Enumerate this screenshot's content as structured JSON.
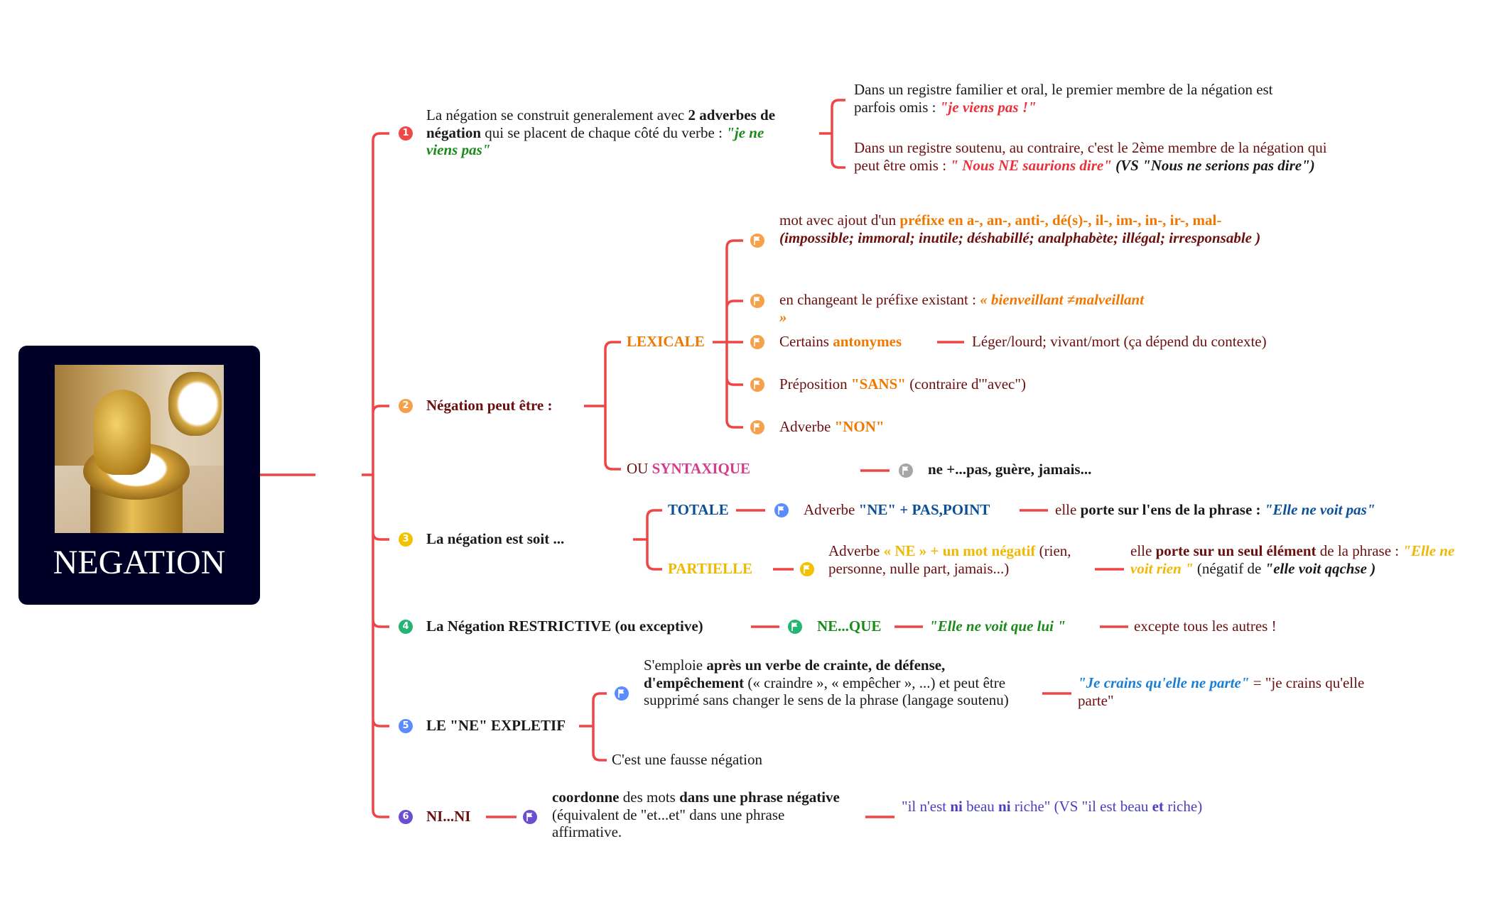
{
  "colors": {
    "line": "#f04545",
    "maroon": "#6b0f0f",
    "orange": "#f07800",
    "red": "#e8303a",
    "green": "#1a8a1a",
    "blue": "#0a4f9a",
    "pink": "#d63c8c",
    "yellow": "#f0b800",
    "cyan": "#1a7fd4",
    "purple": "#4a3fc0",
    "root_bg": "#000026"
  },
  "root": {
    "title": "NEGATION",
    "image": "golden-toilet-photo"
  },
  "icons": {
    "numbered": [
      "1",
      "2",
      "3",
      "4",
      "5",
      "6"
    ],
    "marker": "flag-icon"
  },
  "n1": {
    "text": [
      {
        "t": "La négation se construit generalement avec ",
        "c": "#1a1a1a"
      },
      {
        "t": "2 adverbes de négation",
        "s": "b",
        "c": "#1a1a1a"
      },
      {
        "t": " qui se placent de chaque côté du verbe : ",
        "c": "#1a1a1a"
      },
      {
        "t": "\"je ne viens pas\"",
        "s": "bi",
        "c": "#1a8a1a"
      }
    ],
    "a": [
      {
        "t": "Dans un registre familier et oral, le premier membre de la négation est parfois omis : ",
        "c": "#1a1a1a"
      },
      {
        "t": "\"je viens pas !\"",
        "s": "bi",
        "c": "#e8303a"
      }
    ],
    "b": [
      {
        "t": "Dans un registre soutenu, au contraire, c'est le 2ème membre de la négation qui peut être omis : ",
        "c": "#6b0f0f"
      },
      {
        "t": "\" Nous NE saurions dire\"",
        "s": "bi",
        "c": "#e8303a"
      },
      {
        "t": " (VS \"Nous ne serions pas dire\")",
        "s": "bi",
        "c": "#1a1a1a"
      }
    ]
  },
  "n2": {
    "label": "Négation peut être  :",
    "lexicale": "LEXICALE",
    "lex_items": [
      [
        {
          "t": "mot avec ajout d'un "
        },
        {
          "t": "préfixe en a-, an-, anti-, dé(s)-, il-, im-, in-, ir-, mal-",
          "s": "b",
          "c": "#f07800"
        },
        {
          "t": " (impossible; immoral; inutile; déshabillé; analphabète; illégal; irresponsable )",
          "s": "bi"
        }
      ],
      [
        {
          "t": "en changeant le préfixe existant : "
        },
        {
          "t": "« bienveillant ≠malveillant »",
          "s": "bi",
          "c": "#f07800"
        }
      ],
      [
        {
          "t": "Certains "
        },
        {
          "t": "antonymes",
          "s": "b",
          "c": "#f07800"
        }
      ],
      [
        {
          "t": "Préposition "
        },
        {
          "t": "\"SANS\"",
          "s": "b",
          "c": "#f07800"
        },
        {
          "t": " (contraire d'\"avec\")"
        }
      ],
      [
        {
          "t": "Adverbe "
        },
        {
          "t": "\"NON\"",
          "s": "b",
          "c": "#f07800"
        }
      ]
    ],
    "antonyms_examples": "Léger/lourd; vivant/mort (ça dépend du contexte)",
    "syntaxique": [
      {
        "t": "OU "
      },
      {
        "t": "SYNTAXIQUE",
        "s": "b",
        "c": "#d63c8c"
      }
    ],
    "syntaxique_detail": "ne +...pas, guère, jamais..."
  },
  "n3": {
    "label": "La négation est soit ...",
    "totale": "TOTALE",
    "totale_def": [
      {
        "t": "Adverbe "
      },
      {
        "t": "\"NE\" + PAS,POINT",
        "s": "b",
        "c": "#0a4f9a"
      }
    ],
    "totale_scope": [
      {
        "t": "elle "
      },
      {
        "t": "porte sur l'ens de la phrase : ",
        "s": "b",
        "c": "#1a1a1a"
      },
      {
        "t": "\"Elle ne voit pas\"",
        "s": "bi",
        "c": "#0a4f9a"
      }
    ],
    "partielle": "PARTIELLE",
    "partielle_def": [
      {
        "t": "Adverbe "
      },
      {
        "t": "« NE » +  un mot négatif",
        "s": "b",
        "c": "#f0b800"
      },
      {
        "t": " (rien, personne, nulle part, jamais...)"
      }
    ],
    "partielle_scope": [
      {
        "t": "elle "
      },
      {
        "t": "porte sur un seul élément",
        "s": "b"
      },
      {
        "t": " de la phrase : "
      },
      {
        "t": "\"Elle ne voit rien \"",
        "s": "bi",
        "c": "#f0b800"
      },
      {
        "t": "  (négatif de ",
        "c": "#1a1a1a"
      },
      {
        "t": "\"elle voit qqchse )",
        "s": "bi",
        "c": "#1a1a1a"
      }
    ]
  },
  "n4": {
    "label": "La Négation RESTRICTIVE (ou exceptive)",
    "form": "NE...QUE",
    "example": "\"Elle ne voit que lui \"",
    "meaning": "excepte tous les autres !"
  },
  "n5": {
    "label": "LE \"NE\" EXPLETIF",
    "usage": [
      {
        "t": "S'emploie ",
        "c": "#1a1a1a"
      },
      {
        "t": "après  un verbe de crainte, de défense, d'empêchement",
        "s": "b",
        "c": "#1a1a1a"
      },
      {
        "t": " (« craindre », « empêcher », ...) et peut être supprimé sans changer le sens de la phrase (langage soutenu)",
        "c": "#1a1a1a"
      }
    ],
    "example": [
      {
        "t": "\"Je crains qu'elle ne parte\"",
        "s": "bi",
        "c": "#1a7fd4"
      },
      {
        "t": " = \"je crains qu'elle parte\""
      }
    ],
    "fausse": "C'est une fausse négation"
  },
  "n6": {
    "label": "NI...NI",
    "def": [
      {
        "t": "coordonne",
        "s": "b",
        "c": "#1a1a1a"
      },
      {
        "t": " des mots ",
        "c": "#1a1a1a"
      },
      {
        "t": "dans une phrase négative",
        "s": "b",
        "c": "#1a1a1a"
      },
      {
        "t": " (équivalent de \"et...et\" dans une phrase affirmative.",
        "c": "#1a1a1a"
      }
    ],
    "example": [
      {
        "t": "\"il n'est ",
        "c": "#4a3fc0"
      },
      {
        "t": "ni",
        "s": "b",
        "c": "#4a3fc0"
      },
      {
        "t": " beau ",
        "c": "#4a3fc0"
      },
      {
        "t": "ni",
        "s": "b",
        "c": "#4a3fc0"
      },
      {
        "t": " riche\" (VS \"il est beau ",
        "c": "#4a3fc0"
      },
      {
        "t": "et",
        "s": "b",
        "c": "#4a3fc0"
      },
      {
        "t": " riche)",
        "c": "#4a3fc0"
      }
    ]
  }
}
